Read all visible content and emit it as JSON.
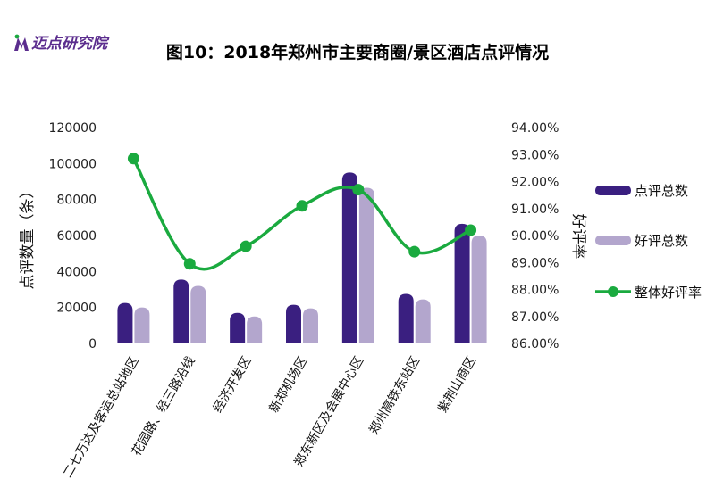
{
  "logo": {
    "text": "迈点研究院"
  },
  "chart_data": {
    "type": "bar",
    "title": "图10：2018年郑州市主要商圈/景区酒店点评情况",
    "ylabel": "点评数量（条）",
    "y2label": "好评率",
    "ylim": [
      0,
      120000
    ],
    "y2lim": [
      0.86,
      0.94
    ],
    "yticks": [
      "0",
      "20000",
      "40000",
      "60000",
      "80000",
      "100000",
      "120000"
    ],
    "y2ticks": [
      "86.00%",
      "87.00%",
      "88.00%",
      "89.00%",
      "90.00%",
      "91.00%",
      "92.00%",
      "93.00%",
      "94.00%"
    ],
    "categories": [
      "二七万达及客运总站地区",
      "花园路、经三路沿线",
      "经济开发区",
      "新郑机场区",
      "郑东新区及会展中心区",
      "郑州高铁东站区",
      "紫荆山商区"
    ],
    "series": [
      {
        "name": "点评总数",
        "type": "bar",
        "axis": "left",
        "color": "#3a1f80",
        "values": [
          22500,
          35500,
          17000,
          21500,
          95000,
          27500,
          66500
        ]
      },
      {
        "name": "好评总数",
        "type": "bar",
        "axis": "left",
        "color": "#b3a6cd",
        "values": [
          20000,
          32000,
          15000,
          19500,
          86500,
          24500,
          60000
        ]
      },
      {
        "name": "整体好评率",
        "type": "line",
        "axis": "right",
        "color": "#1aaa3f",
        "values": [
          0.9285,
          0.8895,
          0.896,
          0.911,
          0.917,
          0.894,
          0.902
        ]
      }
    ],
    "legend_position": "right",
    "grid": false
  }
}
